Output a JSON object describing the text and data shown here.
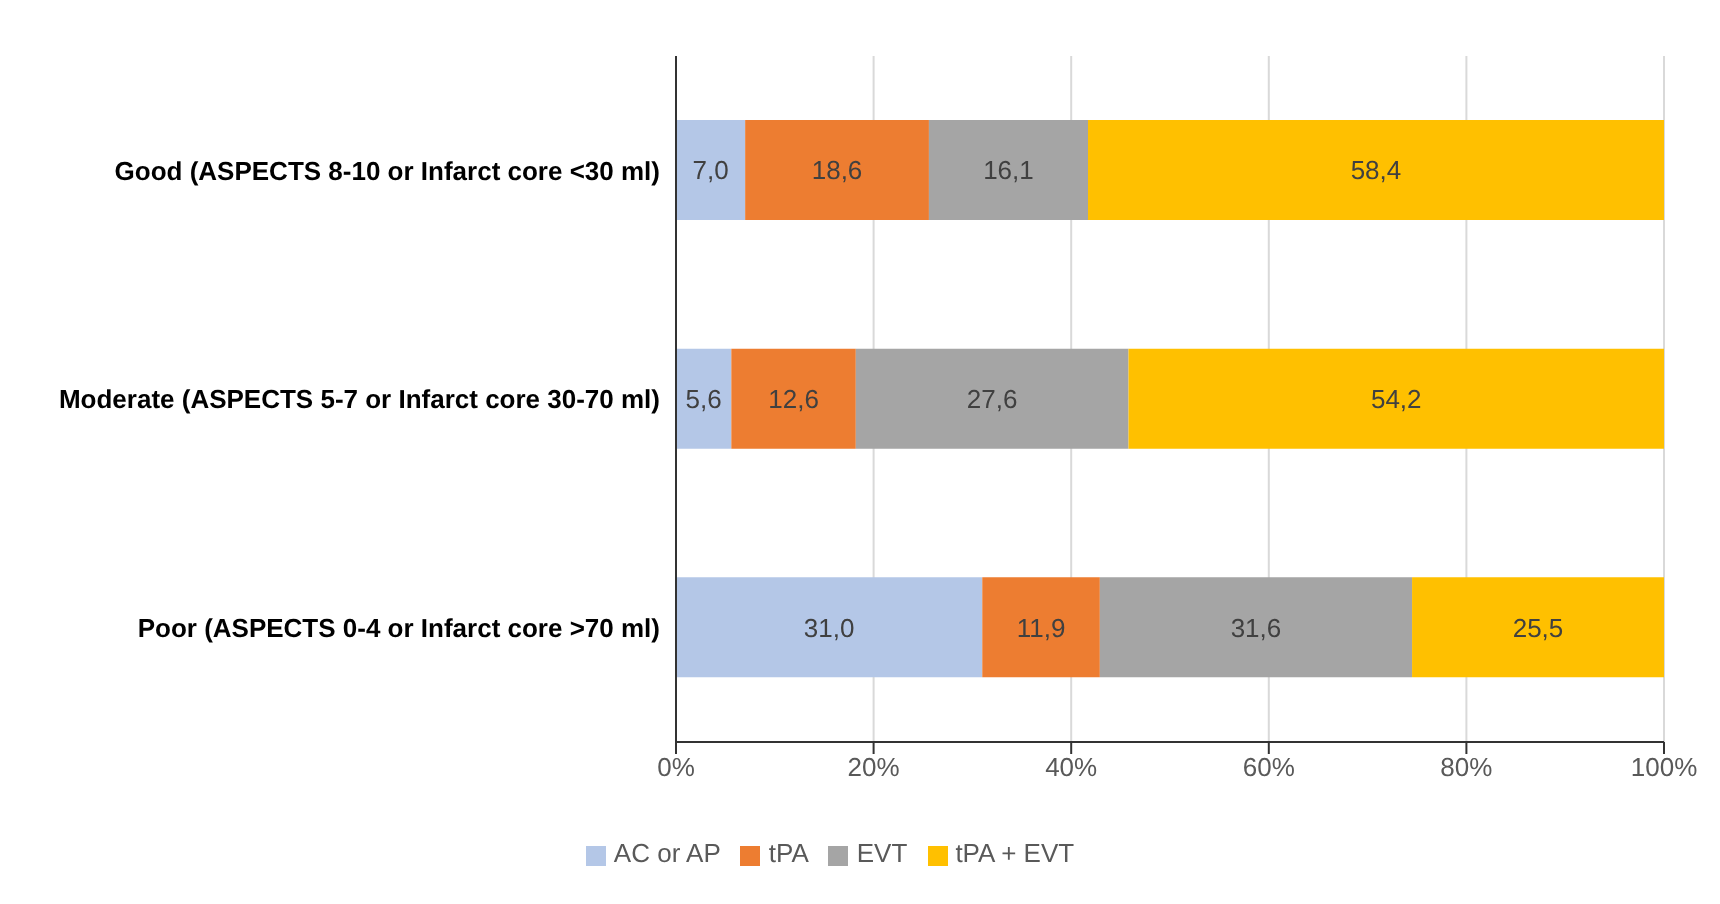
{
  "chart_data": {
    "type": "bar",
    "orientation": "horizontal",
    "stacked": true,
    "categories": [
      "Good (ASPECTS 8-10 or Infarct core <30 ml)",
      "Moderate (ASPECTS 5-7 or Infarct core 30-70 ml)",
      "Poor (ASPECTS 0-4 or Infarct core >70 ml)"
    ],
    "series": [
      {
        "name": "AC or AP",
        "color": "#b4c7e7",
        "values": [
          7.0,
          5.6,
          31.0
        ],
        "value_labels": [
          "7,0",
          "5,6",
          "31,0"
        ]
      },
      {
        "name": "tPA",
        "color": "#ed7d31",
        "values": [
          18.6,
          12.6,
          11.9
        ],
        "value_labels": [
          "18,6",
          "12,6",
          "11,9"
        ]
      },
      {
        "name": "EVT",
        "color": "#a5a5a5",
        "values": [
          16.1,
          27.6,
          31.6
        ],
        "value_labels": [
          "16,1",
          "27,6",
          "31,6"
        ]
      },
      {
        "name": "tPA + EVT",
        "color": "#ffc000",
        "values": [
          58.4,
          54.2,
          25.5
        ],
        "value_labels": [
          "58,4",
          "54,2",
          "25,5"
        ]
      }
    ],
    "xlim": [
      0,
      100
    ],
    "xticks": [
      {
        "value": 0,
        "label": "0%"
      },
      {
        "value": 20,
        "label": "20%"
      },
      {
        "value": 40,
        "label": "40%"
      },
      {
        "value": 60,
        "label": "60%"
      },
      {
        "value": 80,
        "label": "80%"
      },
      {
        "value": 100,
        "label": "100%"
      }
    ],
    "grid": "x",
    "legend": "bottom"
  }
}
